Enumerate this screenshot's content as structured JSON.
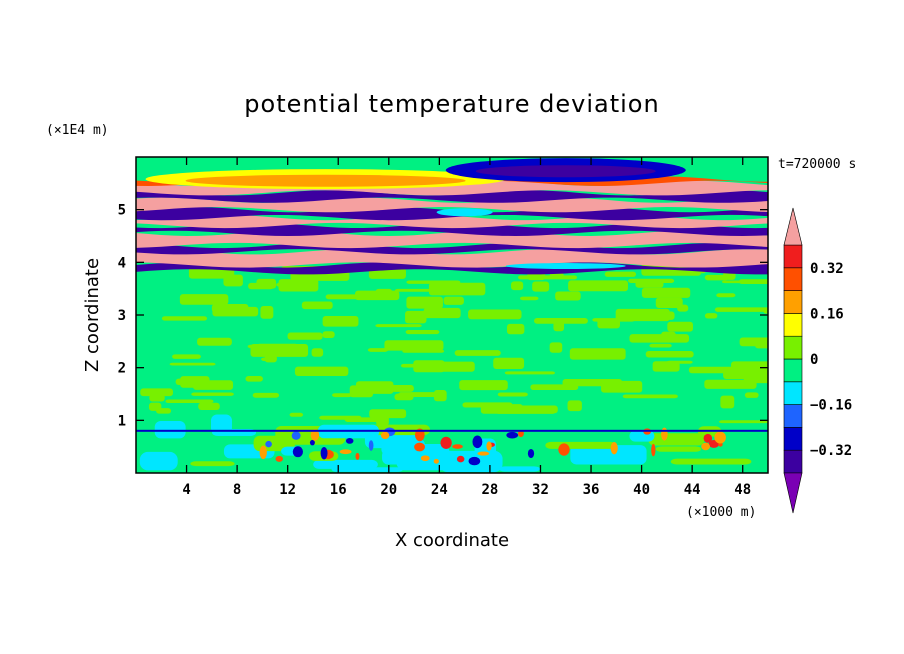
{
  "chart_data": {
    "type": "heatmap",
    "title": "potential temperature deviation",
    "xlabel": "X coordinate",
    "ylabel": "Z coordinate",
    "x_unit": "(×1000 m)",
    "y_unit": "(×1E4 m)",
    "time_label": "t=720000 s",
    "xlim": [
      0,
      50
    ],
    "ylim": [
      0,
      6
    ],
    "x_ticks": [
      "4",
      "8",
      "12",
      "16",
      "20",
      "24",
      "28",
      "32",
      "36",
      "40",
      "44",
      "48"
    ],
    "x_tick_values": [
      4,
      8,
      12,
      16,
      20,
      24,
      28,
      32,
      36,
      40,
      44,
      48
    ],
    "y_ticks": [
      "1",
      "2",
      "3",
      "4",
      "5"
    ],
    "y_tick_values": [
      1,
      2,
      3,
      4,
      5
    ],
    "colorbar": {
      "levels": [
        -0.4,
        -0.32,
        -0.24,
        -0.16,
        -0.08,
        0,
        0.08,
        0.16,
        0.24,
        0.32,
        0.4
      ],
      "labels": [
        "0.32",
        "0.16",
        "0",
        "−0.16",
        "−0.32"
      ],
      "label_values": [
        0.32,
        0.16,
        0,
        -0.16,
        -0.32
      ],
      "colors": [
        "#7a00b4",
        "#3c00a0",
        "#0000c8",
        "#1e64ff",
        "#00e6ff",
        "#00f082",
        "#78f000",
        "#ffff00",
        "#ffa000",
        "#ff5000",
        "#f01e1e",
        "#f5a0a0"
      ]
    },
    "bands": [
      {
        "z": [
          0.0,
          0.8
        ],
        "description": "mixed green/cyan with sparse red and blue spots"
      },
      {
        "z": [
          0.8,
          3.8
        ],
        "description": "green and light-green patchwork"
      },
      {
        "z": [
          3.8,
          5.6
        ],
        "description": "alternating pink and purple layers"
      },
      {
        "z": [
          5.6,
          6.0
        ],
        "description": "light-green with yellow/orange and blue patches"
      }
    ]
  }
}
